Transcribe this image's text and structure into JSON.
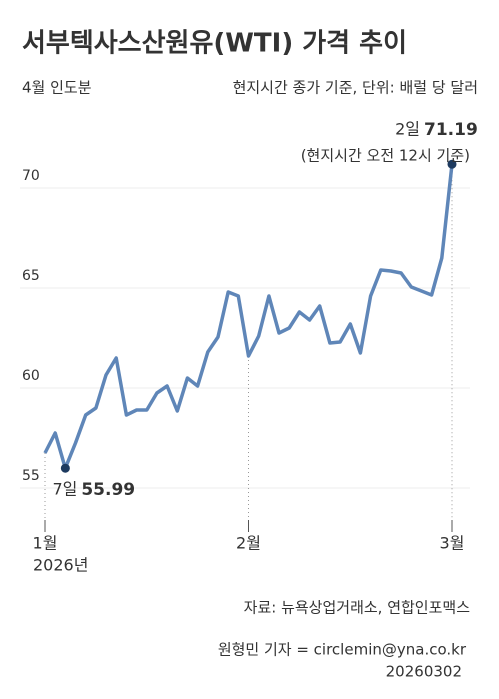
{
  "chart_data": {
    "type": "line",
    "title": "서부텍사스산원유(WTI) 가격 추이",
    "subtitle_left": "4월 인도분",
    "subtitle_right": "현지시간 종가 기준, 단위: 배럴 당 달러",
    "categories": [
      "1월",
      null,
      null,
      null,
      null,
      null,
      null,
      null,
      null,
      null,
      null,
      null,
      null,
      null,
      null,
      null,
      null,
      null,
      null,
      null,
      "2월",
      null,
      null,
      null,
      null,
      null,
      null,
      null,
      null,
      null,
      null,
      null,
      null,
      null,
      null,
      null,
      null,
      null,
      null,
      null,
      "3월"
    ],
    "year_label": "2026년",
    "series": [
      {
        "color": "#5f86b8",
        "values": [
          56.75,
          57.75,
          55.99,
          57.25,
          58.65,
          59.0,
          60.65,
          61.5,
          58.65,
          58.9,
          58.9,
          59.75,
          60.1,
          58.85,
          60.5,
          60.1,
          61.8,
          62.55,
          64.8,
          64.6,
          61.6,
          62.6,
          64.6,
          62.75,
          63.0,
          63.8,
          63.4,
          64.1,
          62.25,
          62.3,
          63.2,
          61.75,
          64.6,
          65.9,
          65.85,
          65.75,
          65.05,
          64.85,
          64.65,
          66.5,
          71.19
        ]
      }
    ],
    "ylim": [
      54,
      72
    ],
    "yticks": [
      55,
      60,
      65,
      70
    ],
    "grid": true,
    "annotations": [
      "2일",
      "(현지시간 오전 12시 기준)",
      "7일"
    ],
    "source": "자료: 뉴욕상업거래소, 연합인포맥스",
    "credit": "원형민 기자 = circlemin@yna.co.kr",
    "date": "20260302"
  }
}
